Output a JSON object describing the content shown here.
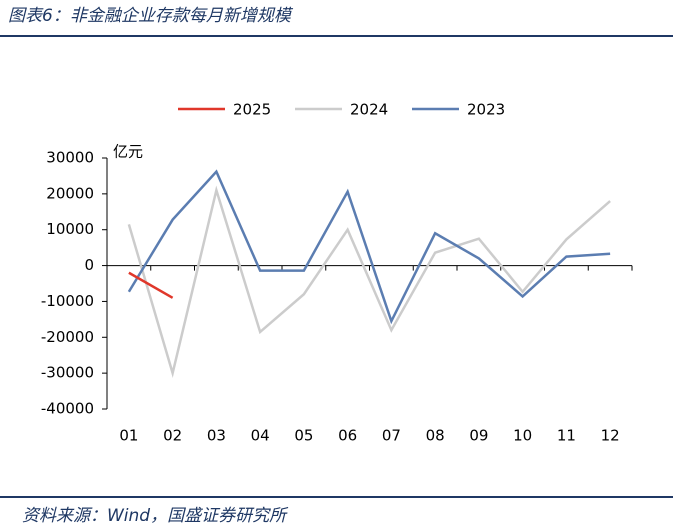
{
  "header": {
    "title": "图表6：非金融企业存款每月新增规模"
  },
  "chart_data": {
    "type": "line",
    "y_unit": "亿元",
    "categories": [
      "01",
      "02",
      "03",
      "04",
      "05",
      "06",
      "07",
      "08",
      "09",
      "10",
      "11",
      "12"
    ],
    "series": [
      {
        "name": "2025",
        "color": "#e0372a",
        "values": [
          -2000,
          -9000,
          null,
          null,
          null,
          null,
          null,
          null,
          null,
          null,
          null,
          null
        ]
      },
      {
        "name": "2024",
        "color": "#cccccc",
        "values": [
          11500,
          -30000,
          21000,
          -18500,
          -8000,
          10000,
          -18000,
          3600,
          7500,
          -7300,
          7300,
          18000
        ]
      },
      {
        "name": "2023",
        "color": "#5b7db1",
        "values": [
          -7300,
          12800,
          26200,
          -1400,
          -1400,
          20600,
          -15500,
          9000,
          2000,
          -8600,
          2500,
          3300
        ]
      }
    ],
    "ylim": [
      -40000,
      30000
    ],
    "yticks": [
      -40000,
      -30000,
      -20000,
      -10000,
      0,
      10000,
      20000,
      30000
    ]
  },
  "footer": {
    "source": "资料来源：Wind，国盛证券研究所"
  }
}
